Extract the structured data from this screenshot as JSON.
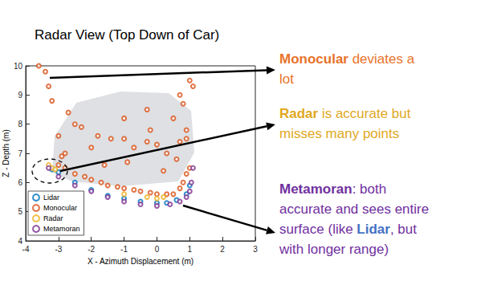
{
  "chart_data": {
    "type": "scatter",
    "title": "Radar View (Top Down of Car)",
    "x_label": "X - Azimuth Displacement (m)",
    "y_label": "Z - Depth (m)",
    "xlim": [
      -4,
      3
    ],
    "ylim": [
      4,
      10
    ],
    "xticks": [
      -4,
      -3,
      -2,
      -1,
      0,
      1,
      2,
      3
    ],
    "yticks": [
      4,
      5,
      6,
      7,
      8,
      9,
      10
    ],
    "grid": false,
    "legend": "lower left",
    "marker": "open circle",
    "series": [
      {
        "name": "Lidar",
        "color": "#0072BD",
        "x": [
          -3.2,
          -3.0,
          -2.5,
          -2.0,
          -1.5,
          -1.0,
          -0.5,
          0.0,
          0.3,
          0.6,
          0.9,
          1.0
        ],
        "y": [
          6.45,
          6.35,
          6.0,
          5.75,
          5.55,
          5.45,
          5.35,
          5.3,
          5.3,
          5.4,
          5.6,
          5.9
        ]
      },
      {
        "name": "Monocular",
        "color": "#D95319",
        "x": [
          -3.0,
          -2.8,
          -2.5,
          -2.2,
          -2.0,
          -1.7,
          -1.5,
          -1.2,
          -1.0,
          -0.7,
          -0.5,
          -0.2,
          0.0,
          0.3,
          0.5,
          0.7,
          0.8,
          0.9,
          1.0,
          0.9,
          -3.6,
          -3.4,
          -3.3,
          -3.2,
          -3.0,
          -2.8,
          -2.7,
          -2.5,
          -2.3,
          -2.0,
          -1.8,
          -1.4,
          -1.0,
          -1.0,
          -0.7,
          -0.3,
          -0.3,
          -0.2,
          0.0,
          0.3,
          0.5,
          0.7,
          0.7,
          0.8,
          1.0,
          1.1,
          0.9,
          -2.9,
          -1.6,
          -0.9,
          0.2,
          0.6
        ],
        "y": [
          6.6,
          6.5,
          6.3,
          6.2,
          6.1,
          6.0,
          5.9,
          5.85,
          5.8,
          5.75,
          5.7,
          5.65,
          5.6,
          5.6,
          5.6,
          5.8,
          6.0,
          6.3,
          6.5,
          7.5,
          10.0,
          9.8,
          9.3,
          8.8,
          7.6,
          7.0,
          8.4,
          8.0,
          7.9,
          7.2,
          7.6,
          7.5,
          8.2,
          7.5,
          7.2,
          8.5,
          7.4,
          7.8,
          7.3,
          7.0,
          8.2,
          9.0,
          7.4,
          8.7,
          9.5,
          9.3,
          7.8,
          6.9,
          6.6,
          6.7,
          6.4,
          6.8
        ]
      },
      {
        "name": "Radar",
        "color": "#EDB120",
        "x": [
          -3.3,
          -3.2,
          -3.1,
          -1.0,
          -0.3,
          0.0,
          0.2
        ],
        "y": [
          6.6,
          6.5,
          6.45,
          5.6,
          5.5,
          5.45,
          5.5
        ]
      },
      {
        "name": "Metamoran",
        "color": "#7E2F8E",
        "x": [
          -3.3,
          -3.0,
          -2.5,
          -2.0,
          -1.5,
          -1.0,
          -0.5,
          0.0,
          0.4,
          0.7,
          0.9,
          1.0,
          1.05,
          1.1
        ],
        "y": [
          6.5,
          6.2,
          5.9,
          5.7,
          5.5,
          5.35,
          5.25,
          5.2,
          5.25,
          5.35,
          5.5,
          5.7,
          6.0,
          6.5
        ]
      }
    ],
    "annotations": [
      {
        "color": "#E8732A",
        "lines": [
          [
            {
              "text": "Monocular",
              "style": "bold"
            },
            {
              "text": " deviates a"
            }
          ],
          [
            {
              "text": "lot"
            }
          ]
        ]
      },
      {
        "color": "#E0A81E",
        "lines": [
          [
            {
              "text": "Radar",
              "style": "bold"
            },
            {
              "text": " is accurate but"
            }
          ],
          [
            {
              "text": "misses many points"
            }
          ]
        ]
      },
      {
        "color": "#7030A0",
        "lines": [
          [
            {
              "text": "Metamoran",
              "style": "bold"
            },
            {
              "text": ": both"
            }
          ],
          [
            {
              "text": "accurate and sees entire"
            }
          ],
          [
            {
              "text": "surface (like "
            },
            {
              "text": "Lidar",
              "style": "bold",
              "color": "#4472C4"
            },
            {
              "text": ", but"
            }
          ],
          [
            {
              "text": "with longer range)"
            }
          ]
        ]
      }
    ]
  }
}
